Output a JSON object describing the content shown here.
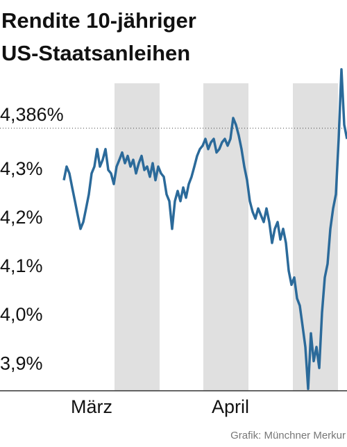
{
  "chart_data": {
    "type": "line",
    "title": [
      "Rendite 10-jähriger",
      "US-Staatsanleihen"
    ],
    "source": "Grafik: Münchner Merkur",
    "color": "#2b6a9a",
    "ylim": [
      3.846,
      4.514
    ],
    "yticks": [
      {
        "value": 4.3,
        "label": "4,3%"
      },
      {
        "value": 4.2,
        "label": "4,2%"
      },
      {
        "value": 4.1,
        "label": "4,1%"
      },
      {
        "value": 4.0,
        "label": "4,0%"
      },
      {
        "value": 3.9,
        "label": "3,9%"
      }
    ],
    "reference_line": {
      "value": 4.386,
      "label": "4,386%"
    },
    "grid": false,
    "categories": [
      null,
      null,
      null,
      null,
      null,
      null,
      null,
      null,
      null,
      null,
      "März",
      null,
      null,
      null,
      null,
      null,
      null,
      null,
      null,
      null,
      null,
      null,
      null,
      null,
      null,
      null,
      null,
      null,
      null,
      null,
      null,
      null,
      null,
      null,
      null,
      null,
      null,
      null,
      null,
      null,
      null,
      null,
      null,
      null,
      null,
      null,
      null,
      null,
      null,
      null,
      null,
      null,
      null,
      null,
      null,
      null,
      null,
      null,
      null,
      null,
      "April",
      null,
      null,
      null,
      null,
      null,
      null,
      null,
      null,
      null,
      null,
      null,
      null,
      null,
      null,
      null,
      null,
      null,
      null,
      null,
      null,
      null,
      null,
      null,
      null,
      null,
      null,
      null,
      null,
      null,
      null,
      null,
      null,
      null,
      null,
      null,
      null,
      null,
      null,
      null,
      null,
      null,
      null
    ],
    "values": [
      4.279,
      4.307,
      4.293,
      4.264,
      4.236,
      4.207,
      4.179,
      4.193,
      4.221,
      4.25,
      4.293,
      4.307,
      4.343,
      4.307,
      4.321,
      4.343,
      4.3,
      4.293,
      4.271,
      4.307,
      4.321,
      4.336,
      4.314,
      4.329,
      4.307,
      4.321,
      4.293,
      4.314,
      4.329,
      4.3,
      4.307,
      4.286,
      4.314,
      4.279,
      4.307,
      4.293,
      4.286,
      4.25,
      4.236,
      4.179,
      4.236,
      4.257,
      4.236,
      4.264,
      4.243,
      4.271,
      4.286,
      4.307,
      4.329,
      4.343,
      4.35,
      4.364,
      4.343,
      4.357,
      4.364,
      4.336,
      4.343,
      4.357,
      4.364,
      4.35,
      4.364,
      4.407,
      4.393,
      4.371,
      4.343,
      4.307,
      4.279,
      4.236,
      4.214,
      4.2,
      4.221,
      4.207,
      4.193,
      4.221,
      4.193,
      4.15,
      4.179,
      4.193,
      4.157,
      4.179,
      4.15,
      4.093,
      4.064,
      4.079,
      4.036,
      4.021,
      3.979,
      3.936,
      3.85,
      3.964,
      3.907,
      3.936,
      3.893,
      4.007,
      4.079,
      4.107,
      4.179,
      4.221,
      4.25,
      4.364,
      4.507,
      4.393,
      4.364
    ]
  }
}
